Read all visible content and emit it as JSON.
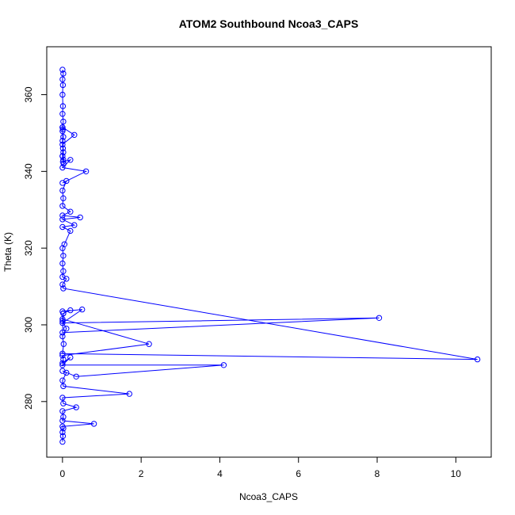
{
  "chart_data": {
    "type": "scatter",
    "title": "ATOM2 Southbound Ncoa3_CAPS",
    "xlabel": "Ncoa3_CAPS",
    "ylabel": "Theta (K)",
    "xlim": [
      -0.4,
      10.9
    ],
    "ylim": [
      265.5,
      372.5
    ],
    "x_ticks": [
      0,
      2,
      4,
      6,
      8,
      10
    ],
    "y_ticks": [
      280,
      300,
      320,
      340,
      360
    ],
    "color": "#0000ff",
    "marker": "open-circle",
    "connected": true,
    "grid": false,
    "series": [
      {
        "name": "",
        "x": [
          0.0,
          0.02,
          0.0,
          0.01,
          0.0,
          0.01,
          0.0,
          0.02,
          0.0,
          0.01,
          0.0,
          0.02,
          0.0,
          0.01,
          0.0,
          0.02,
          0.03,
          0.0,
          0.3,
          0.0,
          0.02,
          0.0,
          0.01,
          0.2,
          0.0,
          0.6,
          0.0,
          0.1,
          0.0,
          0.02,
          0.0,
          0.2,
          0.0,
          0.45,
          0.0,
          0.3,
          0.0,
          0.2,
          0.05,
          0.0,
          0.02,
          0.0,
          0.02,
          0.0,
          0.1,
          0.0,
          0.02,
          10.55,
          0.0,
          0.03,
          0.0,
          0.1,
          0.0,
          0.02,
          0.0,
          8.05,
          0.0,
          0.5,
          0.0,
          0.2,
          0.02,
          0.0,
          2.2,
          0.0,
          0.02,
          0.0,
          0.2,
          0.0,
          4.1,
          0.35,
          0.0,
          0.1,
          0.0,
          0.02,
          1.7,
          0.0,
          0.02,
          0.35,
          0.0,
          0.02,
          0.0,
          0.8,
          0.0,
          0.02,
          0.0,
          0.01,
          0.0
        ],
        "y": [
          366.5,
          365.5,
          364,
          362.5,
          360,
          357,
          355,
          353,
          351.5,
          351,
          350.5,
          349,
          348,
          346,
          344,
          343,
          342,
          351.5,
          349.5,
          347,
          345,
          344,
          342.5,
          343,
          341,
          340,
          337,
          337.5,
          335,
          333,
          331,
          329.5,
          328.5,
          328,
          327.5,
          326,
          325.5,
          324.5,
          321,
          320,
          318,
          316,
          314,
          312.5,
          312,
          310.5,
          309.5,
          291,
          292.5,
          295,
          297,
          299,
          301,
          303,
          298,
          301.8,
          300.5,
          304,
          303.5,
          303.8,
          303,
          301.5,
          295,
          292,
          291,
          290,
          291.5,
          289.5,
          289.5,
          286.5,
          288,
          287.5,
          285.5,
          284,
          282,
          281,
          279.5,
          278.5,
          277.5,
          276,
          275,
          274.2,
          273.5,
          273,
          272,
          271,
          269.5
        ]
      }
    ]
  }
}
